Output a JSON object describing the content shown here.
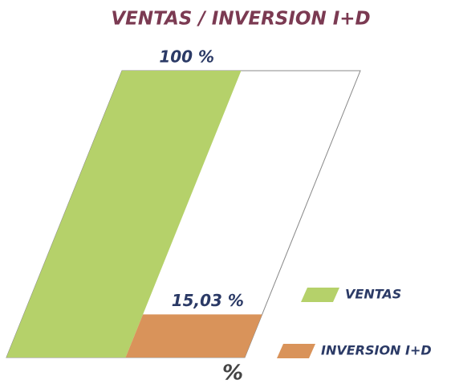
{
  "chart_data": {
    "type": "bar",
    "title": "VENTAS / INVERSION I+D",
    "categories": [
      "VENTAS",
      "INVERSION I+D"
    ],
    "values": [
      100,
      15.03
    ],
    "value_labels": [
      "100 %",
      "15,03 %"
    ],
    "colors": [
      "#b5d16a",
      "#d9935a"
    ],
    "axis_label": "%",
    "ylim": [
      0,
      100
    ],
    "legend": "right"
  }
}
